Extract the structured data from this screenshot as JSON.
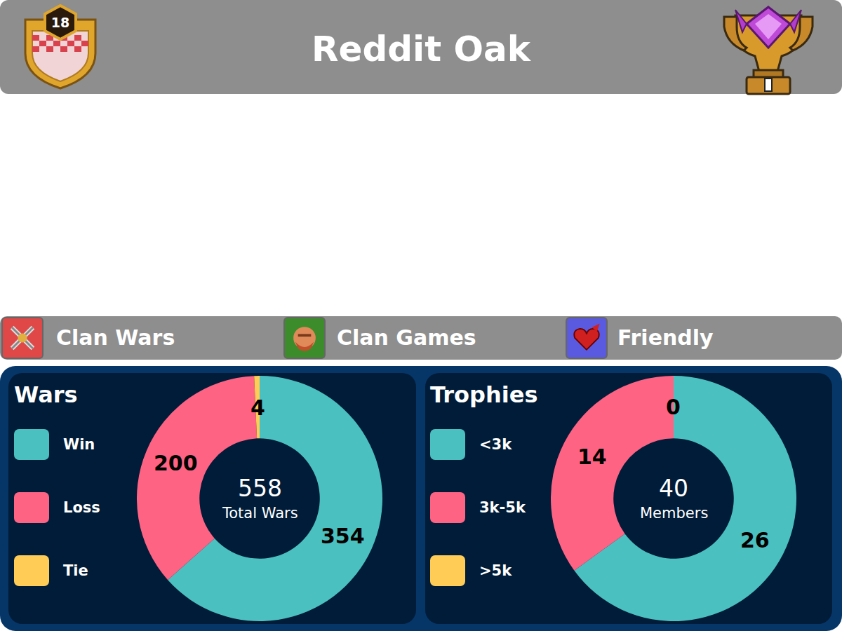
{
  "header": {
    "title": "Reddit Oak",
    "clan_level": 18
  },
  "tabs": [
    "Clan Wars",
    "Clan Games",
    "Friendly"
  ],
  "chart_data": [
    {
      "type": "pie",
      "title": "Wars",
      "categories": [
        "Win",
        "Loss",
        "Tie"
      ],
      "values": [
        354,
        200,
        4
      ],
      "colors": [
        "#4bc0c0",
        "#ff6384",
        "#ffcd56"
      ],
      "data_labels": true,
      "total": 558,
      "total_label": "Total Wars"
    },
    {
      "type": "pie",
      "title": "Trophies",
      "categories": [
        "<3k",
        "3k-5k",
        ">5k"
      ],
      "values": [
        26,
        14,
        0
      ],
      "colors": [
        "#4bc0c0",
        "#ff6384",
        "#ffcd56"
      ],
      "data_labels": true,
      "total": 40,
      "total_label": "Members"
    }
  ]
}
